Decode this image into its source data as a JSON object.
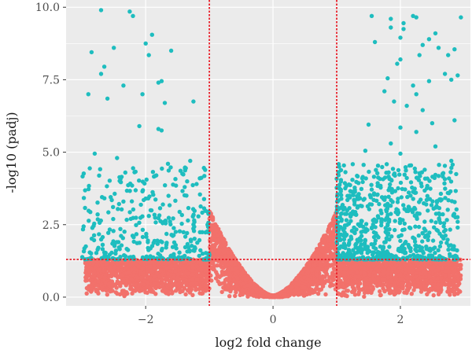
{
  "chart_data": {
    "type": "scatter",
    "title": "",
    "xlabel": "log2 fold change",
    "ylabel": "-log10 (padj)",
    "xlim": [
      -3.25,
      3.1
    ],
    "ylim": [
      -0.3,
      10.25
    ],
    "x_ticks": [
      -2,
      0,
      2
    ],
    "x_tick_labels": [
      "−2",
      "0",
      "2"
    ],
    "y_ticks": [
      0,
      2.5,
      5,
      7.5,
      10
    ],
    "y_tick_labels": [
      "0.0",
      "2.5",
      "5.0",
      "7.5",
      "10.0"
    ],
    "grid": true,
    "legend": "none",
    "thresholds": {
      "log2fc": [
        -1,
        1
      ],
      "neg_log10_padj": 1.3
    },
    "colors": {
      "panel_background": "#ebebeb",
      "grid": "#ffffff",
      "threshold_line": "#e8202a",
      "significant": "#1ebdbf",
      "not_significant": "#f2716b"
    },
    "series": [
      {
        "status": "significant",
        "color": "#1ebdbf",
        "points": [
          [
            -2.7,
            9.9
          ],
          [
            -2.25,
            9.85
          ],
          [
            -2.2,
            9.7
          ],
          [
            -1.9,
            9.05
          ],
          [
            -2.0,
            8.75
          ],
          [
            -2.5,
            8.6
          ],
          [
            -1.95,
            8.35
          ],
          [
            -1.6,
            8.5
          ],
          [
            -2.85,
            8.45
          ],
          [
            -2.65,
            7.95
          ],
          [
            -2.7,
            7.7
          ],
          [
            -1.8,
            7.4
          ],
          [
            -1.75,
            7.45
          ],
          [
            -2.35,
            7.3
          ],
          [
            -2.9,
            7.0
          ],
          [
            -2.6,
            6.85
          ],
          [
            -2.05,
            7.0
          ],
          [
            -1.7,
            6.7
          ],
          [
            -1.25,
            6.75
          ],
          [
            -2.1,
            5.9
          ],
          [
            -1.75,
            5.75
          ],
          [
            -1.8,
            5.8
          ],
          [
            -2.8,
            4.95
          ],
          [
            -2.45,
            4.8
          ],
          [
            -1.65,
            4.6
          ],
          [
            -1.3,
            4.7
          ],
          [
            -1.15,
            4.1
          ],
          [
            -1.2,
            3.9
          ],
          [
            -2.55,
            3.45
          ],
          [
            -2.0,
            3.4
          ],
          [
            -2.35,
            3.3
          ],
          [
            1.55,
            9.7
          ],
          [
            1.85,
            9.6
          ],
          [
            2.2,
            9.7
          ],
          [
            2.25,
            9.65
          ],
          [
            2.05,
            9.45
          ],
          [
            2.95,
            9.65
          ],
          [
            1.85,
            9.3
          ],
          [
            2.05,
            9.25
          ],
          [
            2.55,
            9.1
          ],
          [
            2.0,
            8.95
          ],
          [
            2.45,
            8.9
          ],
          [
            1.6,
            8.8
          ],
          [
            2.35,
            8.7
          ],
          [
            2.6,
            8.6
          ],
          [
            2.85,
            8.55
          ],
          [
            2.3,
            8.35
          ],
          [
            2.75,
            8.35
          ],
          [
            2.0,
            8.2
          ],
          [
            1.95,
            8.05
          ],
          [
            2.7,
            7.7
          ],
          [
            2.9,
            7.65
          ],
          [
            2.8,
            7.5
          ],
          [
            1.8,
            7.55
          ],
          [
            2.45,
            7.45
          ],
          [
            2.2,
            7.3
          ],
          [
            1.75,
            7.1
          ],
          [
            2.25,
            7.0
          ],
          [
            1.9,
            6.75
          ],
          [
            2.1,
            6.6
          ],
          [
            2.35,
            6.45
          ],
          [
            2.85,
            6.1
          ],
          [
            2.5,
            6.0
          ],
          [
            1.5,
            5.95
          ],
          [
            2.0,
            5.85
          ],
          [
            2.25,
            5.7
          ],
          [
            1.85,
            5.3
          ],
          [
            2.55,
            5.2
          ],
          [
            1.45,
            5.05
          ],
          [
            2.0,
            4.95
          ],
          [
            2.8,
            4.7
          ],
          [
            2.9,
            2.6
          ],
          [
            2.9,
            2.4
          ],
          [
            2.35,
            2.2
          ],
          [
            2.65,
            2.1
          ]
        ],
        "dense_clusters": [
          {
            "x_range": [
              -3.0,
              -1.0
            ],
            "y_range": [
              1.3,
              4.5
            ],
            "count": 330,
            "seed": 11
          },
          {
            "x_range": [
              1.0,
              2.9
            ],
            "y_range": [
              1.3,
              4.6
            ],
            "count": 720,
            "seed": 23
          }
        ]
      },
      {
        "status": "not_significant",
        "color": "#f2716b",
        "volcano_band": {
          "x_range": [
            -2.95,
            2.95
          ],
          "count": 5200,
          "max_y": 3.0,
          "seed": 7
        }
      }
    ]
  }
}
